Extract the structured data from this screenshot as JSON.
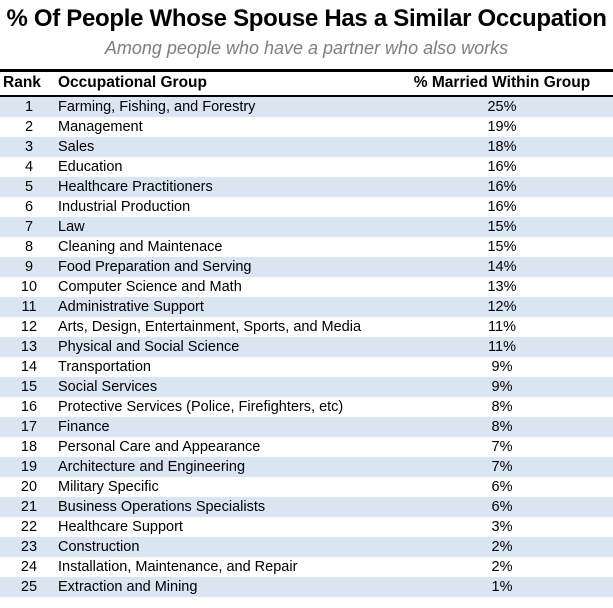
{
  "chart_data": {
    "type": "table",
    "title": "% Of People Whose Spouse Has a Similar Occupation",
    "subtitle": "Among people who have a partner who also works",
    "columns": [
      "Rank",
      "Occupational Group",
      "% Married Within Group"
    ],
    "rows": [
      {
        "rank": "1",
        "group": "Farming, Fishing, and Forestry",
        "pct": "25%"
      },
      {
        "rank": "2",
        "group": "Management",
        "pct": "19%"
      },
      {
        "rank": "3",
        "group": "Sales",
        "pct": "18%"
      },
      {
        "rank": "4",
        "group": "Education",
        "pct": "16%"
      },
      {
        "rank": "5",
        "group": "Healthcare Practitioners",
        "pct": "16%"
      },
      {
        "rank": "6",
        "group": "Industrial Production",
        "pct": "16%"
      },
      {
        "rank": "7",
        "group": "Law",
        "pct": "15%"
      },
      {
        "rank": "8",
        "group": "Cleaning and Maintenace",
        "pct": "15%"
      },
      {
        "rank": "9",
        "group": "Food Preparation and Serving",
        "pct": "14%"
      },
      {
        "rank": "10",
        "group": "Computer Science and Math",
        "pct": "13%"
      },
      {
        "rank": "11",
        "group": "Administrative Support",
        "pct": "12%"
      },
      {
        "rank": "12",
        "group": "Arts, Design, Entertainment, Sports, and Media",
        "pct": "11%"
      },
      {
        "rank": "13",
        "group": "Physical and Social Science",
        "pct": "11%"
      },
      {
        "rank": "14",
        "group": "Transportation",
        "pct": "9%"
      },
      {
        "rank": "15",
        "group": "Social Services",
        "pct": "9%"
      },
      {
        "rank": "16",
        "group": "Protective Services (Police, Firefighters, etc)",
        "pct": "8%"
      },
      {
        "rank": "17",
        "group": "Finance",
        "pct": "8%"
      },
      {
        "rank": "18",
        "group": "Personal Care and Appearance",
        "pct": "7%"
      },
      {
        "rank": "19",
        "group": "Architecture and Engineering",
        "pct": "7%"
      },
      {
        "rank": "20",
        "group": "Military Specific",
        "pct": "6%"
      },
      {
        "rank": "21",
        "group": "Business Operations Specialists",
        "pct": "6%"
      },
      {
        "rank": "22",
        "group": "Healthcare Support",
        "pct": "3%"
      },
      {
        "rank": "23",
        "group": "Construction",
        "pct": "2%"
      },
      {
        "rank": "24",
        "group": "Installation, Maintenance, and Repair",
        "pct": "2%"
      },
      {
        "rank": "25",
        "group": "Extraction and Mining",
        "pct": "1%"
      }
    ],
    "layout": {
      "stripe_rows": "odd",
      "value_alignment": "center",
      "grid": false
    }
  },
  "colors": {
    "row_stripe": "#dbe5f1",
    "subtitle_text": "#7f7f7f",
    "rule": "#000000",
    "background": "#ffffff"
  }
}
